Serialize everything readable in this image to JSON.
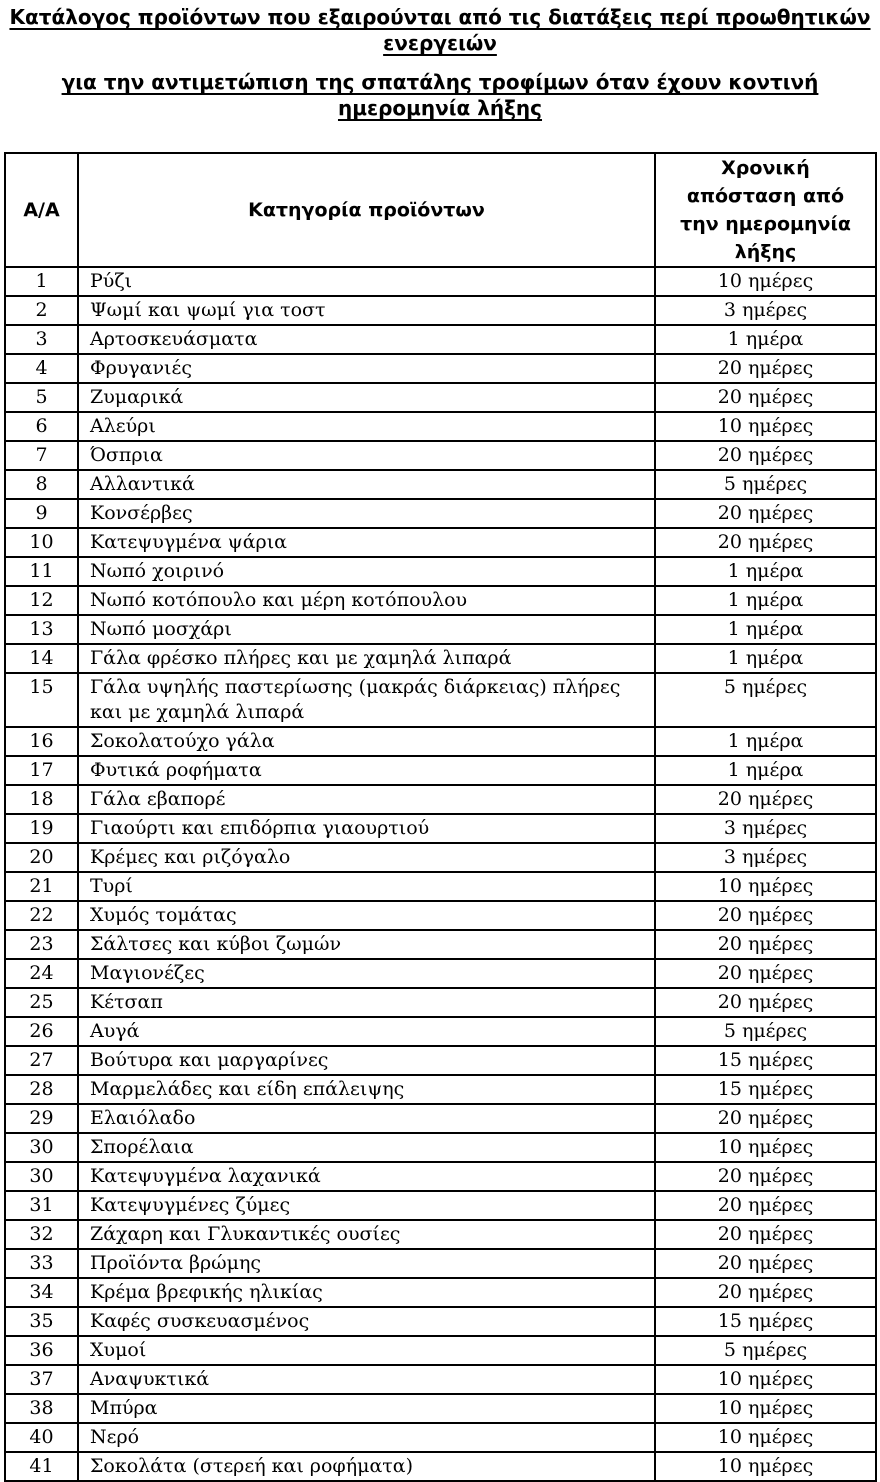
{
  "document": {
    "title_line1": "Κατάλογος προϊόντων που εξαιρούνται από τις διατάξεις περί προωθητικών ενεργειών",
    "title_line2": "για την αντιμετώπιση της σπατάλης τροφίμων όταν έχουν κοντινή ημερομηνία λήξης"
  },
  "table": {
    "headers": {
      "index": "Α/Α",
      "category": "Κατηγορία προϊόντων",
      "time": "Χρονική απόσταση από την ημερομηνία λήξης"
    },
    "rows": [
      {
        "num": "1",
        "category": "Ρύζι",
        "time": "10 ημέρες"
      },
      {
        "num": "2",
        "category": "Ψωμί και ψωμί για τοστ",
        "time": "3 ημέρες"
      },
      {
        "num": "3",
        "category": "Αρτοσκευάσματα",
        "time": "1 ημέρα"
      },
      {
        "num": "4",
        "category": "Φρυγανιές",
        "time": "20 ημέρες"
      },
      {
        "num": "5",
        "category": "Ζυμαρικά",
        "time": "20 ημέρες"
      },
      {
        "num": "6",
        "category": "Αλεύρι",
        "time": "10 ημέρες"
      },
      {
        "num": "7",
        "category": "Όσπρια",
        "time": "20 ημέρες"
      },
      {
        "num": "8",
        "category": "Αλλαντικά",
        "time": "5 ημέρες"
      },
      {
        "num": "9",
        "category": "Κονσέρβες",
        "time": "20 ημέρες"
      },
      {
        "num": "10",
        "category": "Κατεψυγμένα ψάρια",
        "time": "20 ημέρες"
      },
      {
        "num": "11",
        "category": "Νωπό χοιρινό",
        "time": "1 ημέρα"
      },
      {
        "num": "12",
        "category": "Νωπό κοτόπουλο και μέρη κοτόπουλου",
        "time": "1 ημέρα"
      },
      {
        "num": "13",
        "category": "Νωπό μοσχάρι",
        "time": "1 ημέρα"
      },
      {
        "num": "14",
        "category": "Γάλα φρέσκο πλήρες και με χαμηλά λιπαρά",
        "time": "1 ημέρα"
      },
      {
        "num": "15",
        "category": "Γάλα υψηλής παστερίωσης (μακράς διάρκειας) πλήρες και με χαμηλά λιπαρά",
        "time": "5 ημέρες"
      },
      {
        "num": "16",
        "category": "Σοκολατούχο γάλα",
        "time": "1 ημέρα"
      },
      {
        "num": "17",
        "category": "Φυτικά ροφήματα",
        "time": "1 ημέρα"
      },
      {
        "num": "18",
        "category": "Γάλα εβαπορέ",
        "time": "20 ημέρες"
      },
      {
        "num": "19",
        "category": "Γιαούρτι και επιδόρπια γιαουρτιού",
        "time": "3 ημέρες"
      },
      {
        "num": "20",
        "category": "Κρέμες και ριζόγαλο",
        "time": "3 ημέρες"
      },
      {
        "num": "21",
        "category": "Τυρί",
        "time": "10 ημέρες"
      },
      {
        "num": "22",
        "category": "Χυμός τομάτας",
        "time": "20 ημέρες"
      },
      {
        "num": "23",
        "category": "Σάλτσες και κύβοι ζωμών",
        "time": "20 ημέρες"
      },
      {
        "num": "24",
        "category": "Μαγιονέζες",
        "time": "20 ημέρες"
      },
      {
        "num": "25",
        "category": "Κέτσαπ",
        "time": "20 ημέρες"
      },
      {
        "num": "26",
        "category": "Αυγά",
        "time": "5 ημέρες"
      },
      {
        "num": "27",
        "category": "Βούτυρα και μαργαρίνες",
        "time": "15 ημέρες"
      },
      {
        "num": "28",
        "category": "Μαρμελάδες και είδη επάλειψης",
        "time": "15 ημέρες"
      },
      {
        "num": "29",
        "category": "Ελαιόλαδο",
        "time": "20 ημέρες"
      },
      {
        "num": "30",
        "category": "Σπορέλαια",
        "time": "10 ημέρες"
      },
      {
        "num": "30",
        "category": "Κατεψυγμένα λαχανικά",
        "time": "20 ημέρες"
      },
      {
        "num": "31",
        "category": "Κατεψυγμένες ζύμες",
        "time": "20 ημέρες"
      },
      {
        "num": "32",
        "category": "Ζάχαρη και Γλυκαντικές ουσίες",
        "time": "20 ημέρες"
      },
      {
        "num": "33",
        "category": "Προϊόντα βρώμης",
        "time": "20 ημέρες"
      },
      {
        "num": "34",
        "category": "Κρέμα βρεφικής ηλικίας",
        "time": "20 ημέρες"
      },
      {
        "num": "35",
        "category": "Καφές συσκευασμένος",
        "time": "15 ημέρες"
      },
      {
        "num": "36",
        "category": "Χυμοί",
        "time": "5 ημέρες"
      },
      {
        "num": "37",
        "category": "Αναψυκτικά",
        "time": "10 ημέρες"
      },
      {
        "num": "38",
        "category": "Μπύρα",
        "time": "10 ημέρες"
      },
      {
        "num": "40",
        "category": "Νερό",
        "time": "10 ημέρες"
      },
      {
        "num": "41",
        "category": "Σοκολάτα (στερεή και ροφήματα)",
        "time": "10 ημέρες"
      }
    ]
  }
}
